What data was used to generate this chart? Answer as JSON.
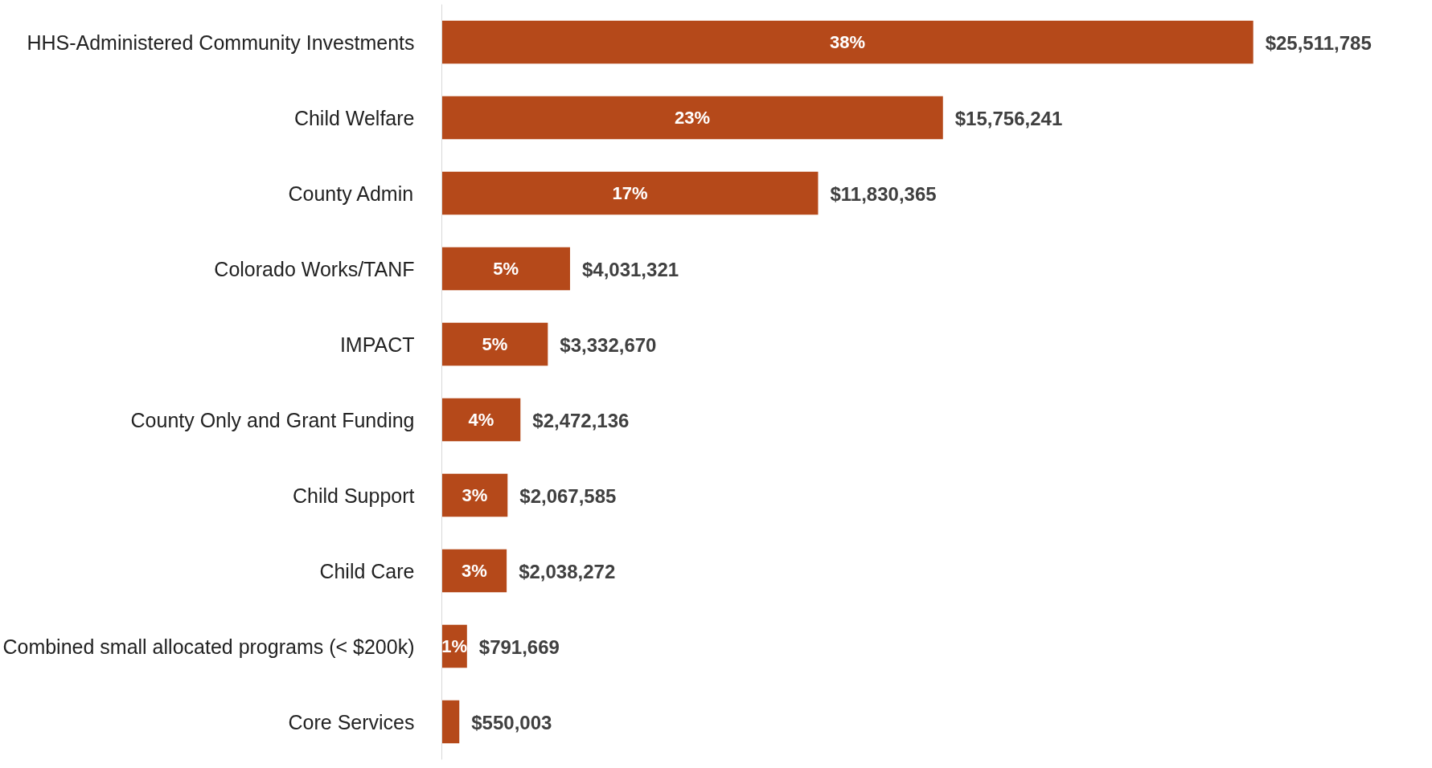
{
  "chart_data": {
    "type": "bar",
    "orientation": "horizontal",
    "categories": [
      "HHS-Administered Community Investments",
      "Child Welfare",
      "County Admin",
      "Colorado Works/TANF",
      "IMPACT",
      "County Only and Grant Funding",
      "Child Support",
      "Child Care",
      "Combined small allocated programs (< $200k)",
      "Core Services"
    ],
    "values": [
      25511785,
      15756241,
      11830365,
      4031321,
      3332670,
      2472136,
      2067585,
      2038272,
      791669,
      550003
    ],
    "value_labels": [
      "$25,511,785",
      "$15,756,241",
      "$11,830,365",
      "$4,031,321",
      "$3,332,670",
      "$2,472,136",
      "$2,067,585",
      "$2,038,272",
      "$791,669",
      "$550,003"
    ],
    "color": "#b5491a",
    "grid": false,
    "tick_labels": "y",
    "annotations": [
      "38%",
      "23%",
      "17%",
      "5%",
      "5%",
      "4%",
      "3%",
      "3%",
      "1%"
    ]
  }
}
